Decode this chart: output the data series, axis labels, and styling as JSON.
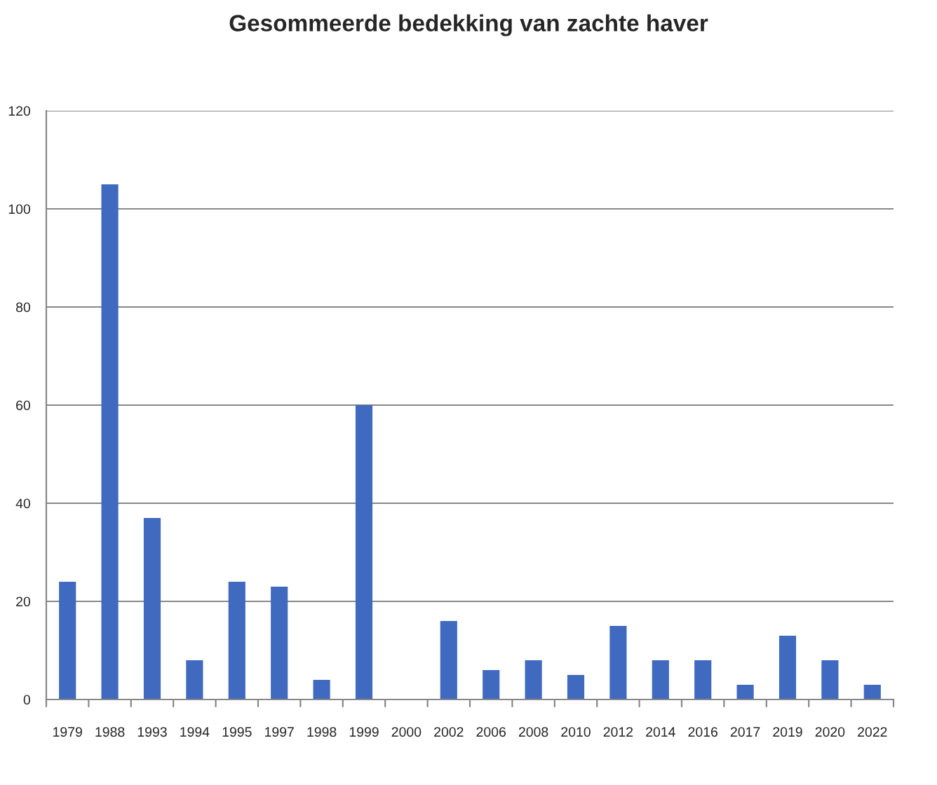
{
  "chart_data": {
    "type": "bar",
    "title": "Gesommeerde bedekking van zachte haver",
    "categories": [
      "1979",
      "1988",
      "1993",
      "1994",
      "1995",
      "1997",
      "1998",
      "1999",
      "2000",
      "2002",
      "2006",
      "2008",
      "2010",
      "2012",
      "2014",
      "2016",
      "2017",
      "2019",
      "2020",
      "2022"
    ],
    "values": [
      24,
      105,
      37,
      8,
      24,
      23,
      4,
      60,
      null,
      16,
      6,
      8,
      5,
      15,
      8,
      8,
      3,
      13,
      8,
      3
    ],
    "color": "#4069c0",
    "ylim": [
      0,
      120
    ],
    "yticks": [
      0,
      20,
      40,
      60,
      80,
      100,
      120
    ],
    "grid": "y"
  }
}
